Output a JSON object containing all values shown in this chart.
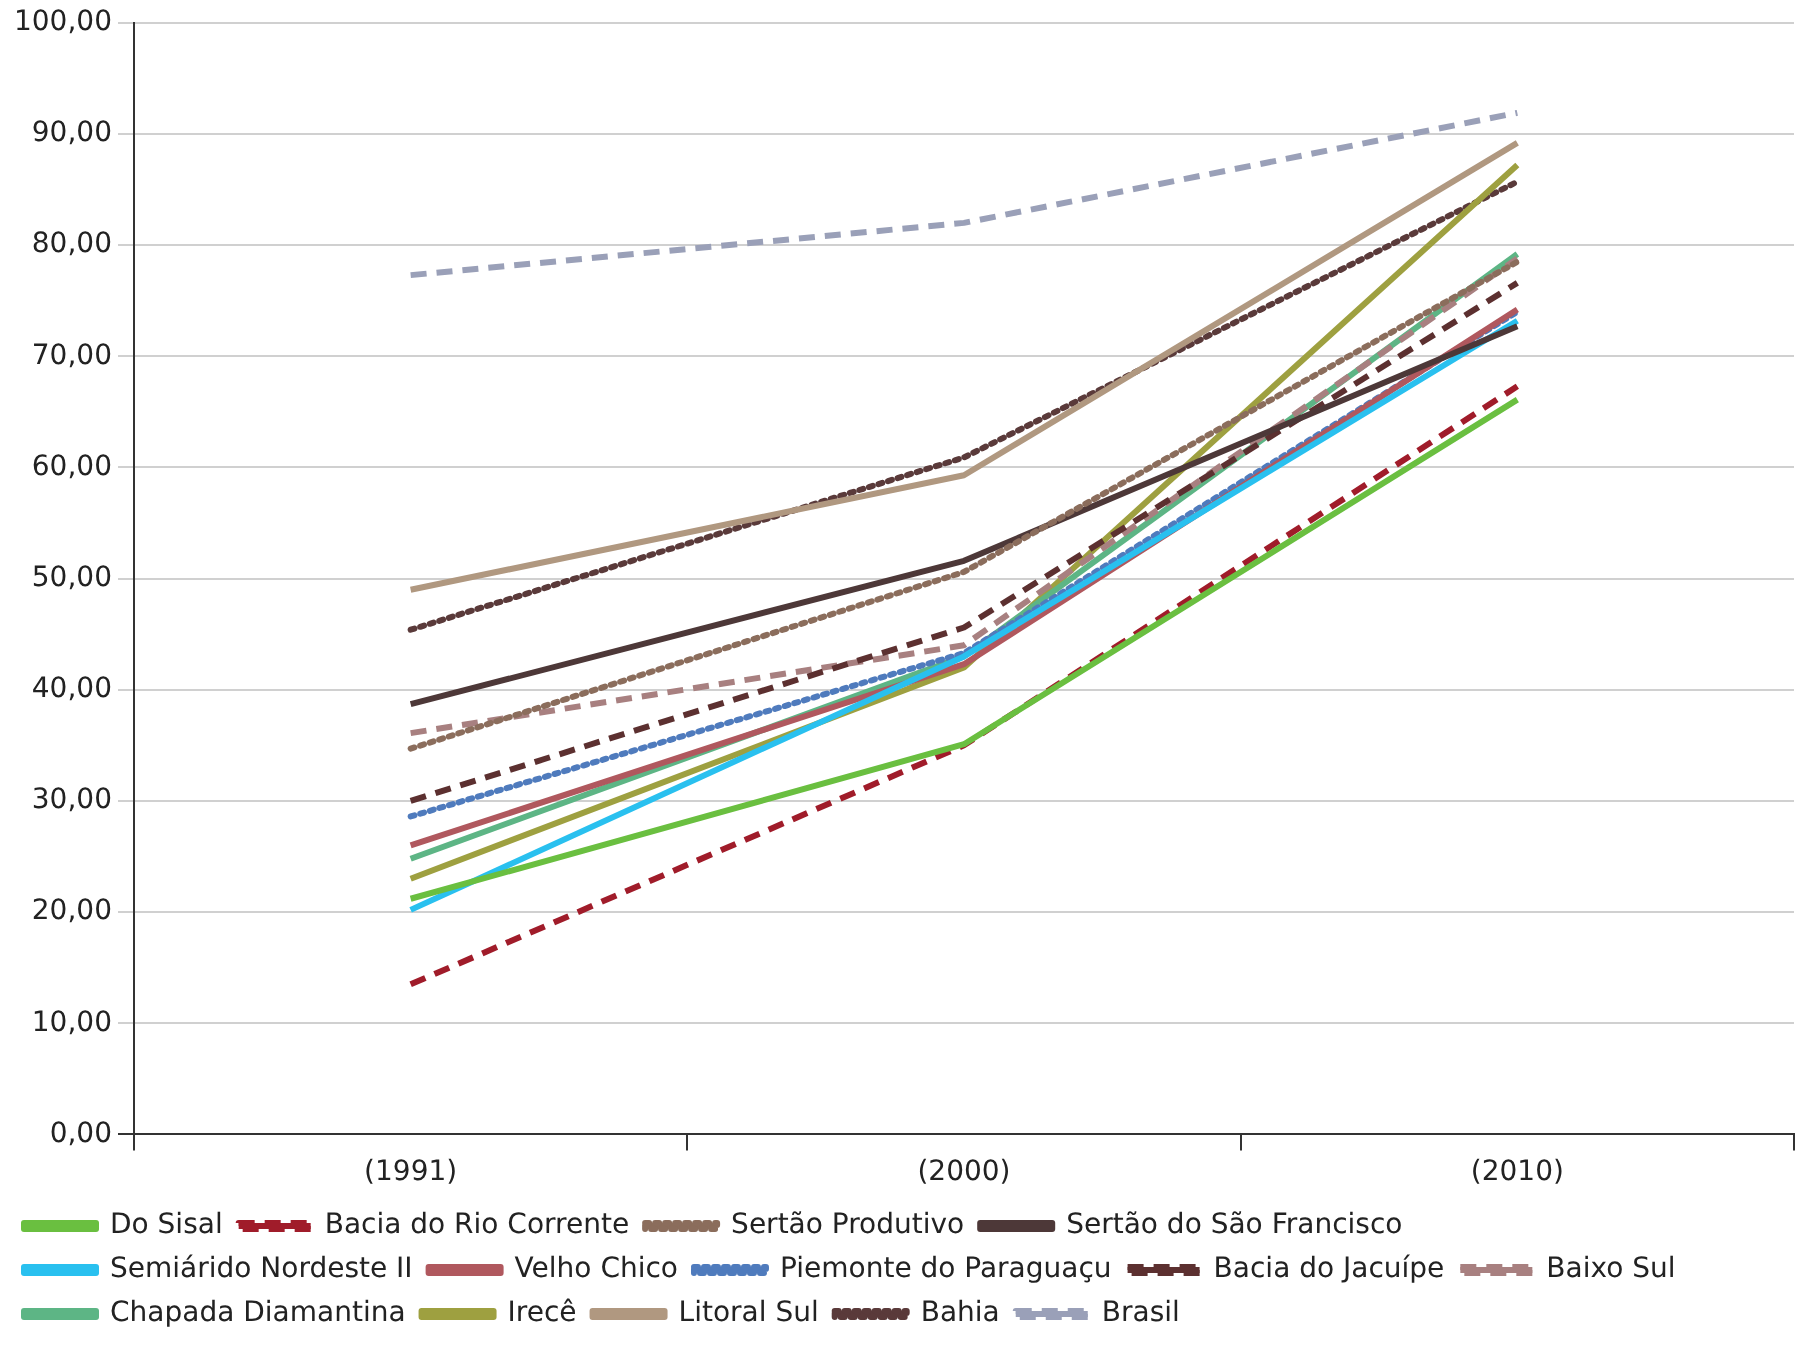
{
  "chart_data": {
    "type": "line",
    "categories": [
      "(1991)",
      "(2000)",
      "(2010)"
    ],
    "ylim": [
      0,
      100
    ],
    "yticks": [
      {
        "value": 0,
        "label": "0,00"
      },
      {
        "value": 10,
        "label": "10,00"
      },
      {
        "value": 20,
        "label": "20,00"
      },
      {
        "value": 30,
        "label": "30,00"
      },
      {
        "value": 40,
        "label": "40,00"
      },
      {
        "value": 50,
        "label": "50,00"
      },
      {
        "value": 60,
        "label": "60,00"
      },
      {
        "value": 70,
        "label": "70,00"
      },
      {
        "value": 80,
        "label": "80,00"
      },
      {
        "value": 90,
        "label": "90,00"
      },
      {
        "value": 100,
        "label": "100,00"
      }
    ],
    "grid": "y",
    "legend": "bottom",
    "marker": "none",
    "series": [
      {
        "name": "Do Sisal",
        "color": "#6abf40",
        "line_style": "solid",
        "values": [
          21.2,
          35.1,
          66.1
        ]
      },
      {
        "name": "Bacia do Rio Corrente",
        "color": "#a01c2a",
        "line_style": "dashed",
        "values": [
          13.5,
          35,
          67.3
        ]
      },
      {
        "name": "Sertão Produtivo",
        "color": "#8b6d5c",
        "line_style": "dotted",
        "values": [
          34.7,
          50.6,
          78.5
        ]
      },
      {
        "name": "Sertão do São Francisco",
        "color": "#4d3838",
        "line_style": "solid",
        "values": [
          38.7,
          51.6,
          72.7
        ]
      },
      {
        "name": "Semiárido Nordeste II",
        "color": "#29c0ef",
        "line_style": "solid",
        "values": [
          20.2,
          43,
          73.2
        ]
      },
      {
        "name": "Velho Chico",
        "color": "#b0585e",
        "line_style": "solid",
        "values": [
          26,
          42.3,
          74.2
        ]
      },
      {
        "name": "Piemonte do Paraguaçu",
        "color": "#4f7bbd",
        "line_style": "dotted",
        "values": [
          28.6,
          43.3,
          74
        ]
      },
      {
        "name": "Bacia do Jacuípe",
        "color": "#5c3030",
        "line_style": "dashed",
        "values": [
          30,
          45.6,
          76.6
        ]
      },
      {
        "name": "Baixo Sul",
        "color": "#a88080",
        "line_style": "dashed",
        "values": [
          36.1,
          44,
          78.8
        ]
      },
      {
        "name": "Chapada Diamantina",
        "color": "#5db585",
        "line_style": "solid",
        "values": [
          24.8,
          43,
          79.2
        ]
      },
      {
        "name": "Irecê",
        "color": "#9ea040",
        "line_style": "solid",
        "values": [
          23,
          42,
          87.2
        ]
      },
      {
        "name": "Litoral Sul",
        "color": "#b09880",
        "line_style": "solid",
        "values": [
          49,
          59.3,
          89.2
        ]
      },
      {
        "name": "Bahia",
        "color": "#5a3a3a",
        "line_style": "dotted",
        "values": [
          45.4,
          60.9,
          85.7
        ]
      },
      {
        "name": "Brasil",
        "color": "#9aa0b8",
        "line_style": "dashed",
        "values": [
          77.3,
          82,
          91.9
        ]
      }
    ]
  }
}
